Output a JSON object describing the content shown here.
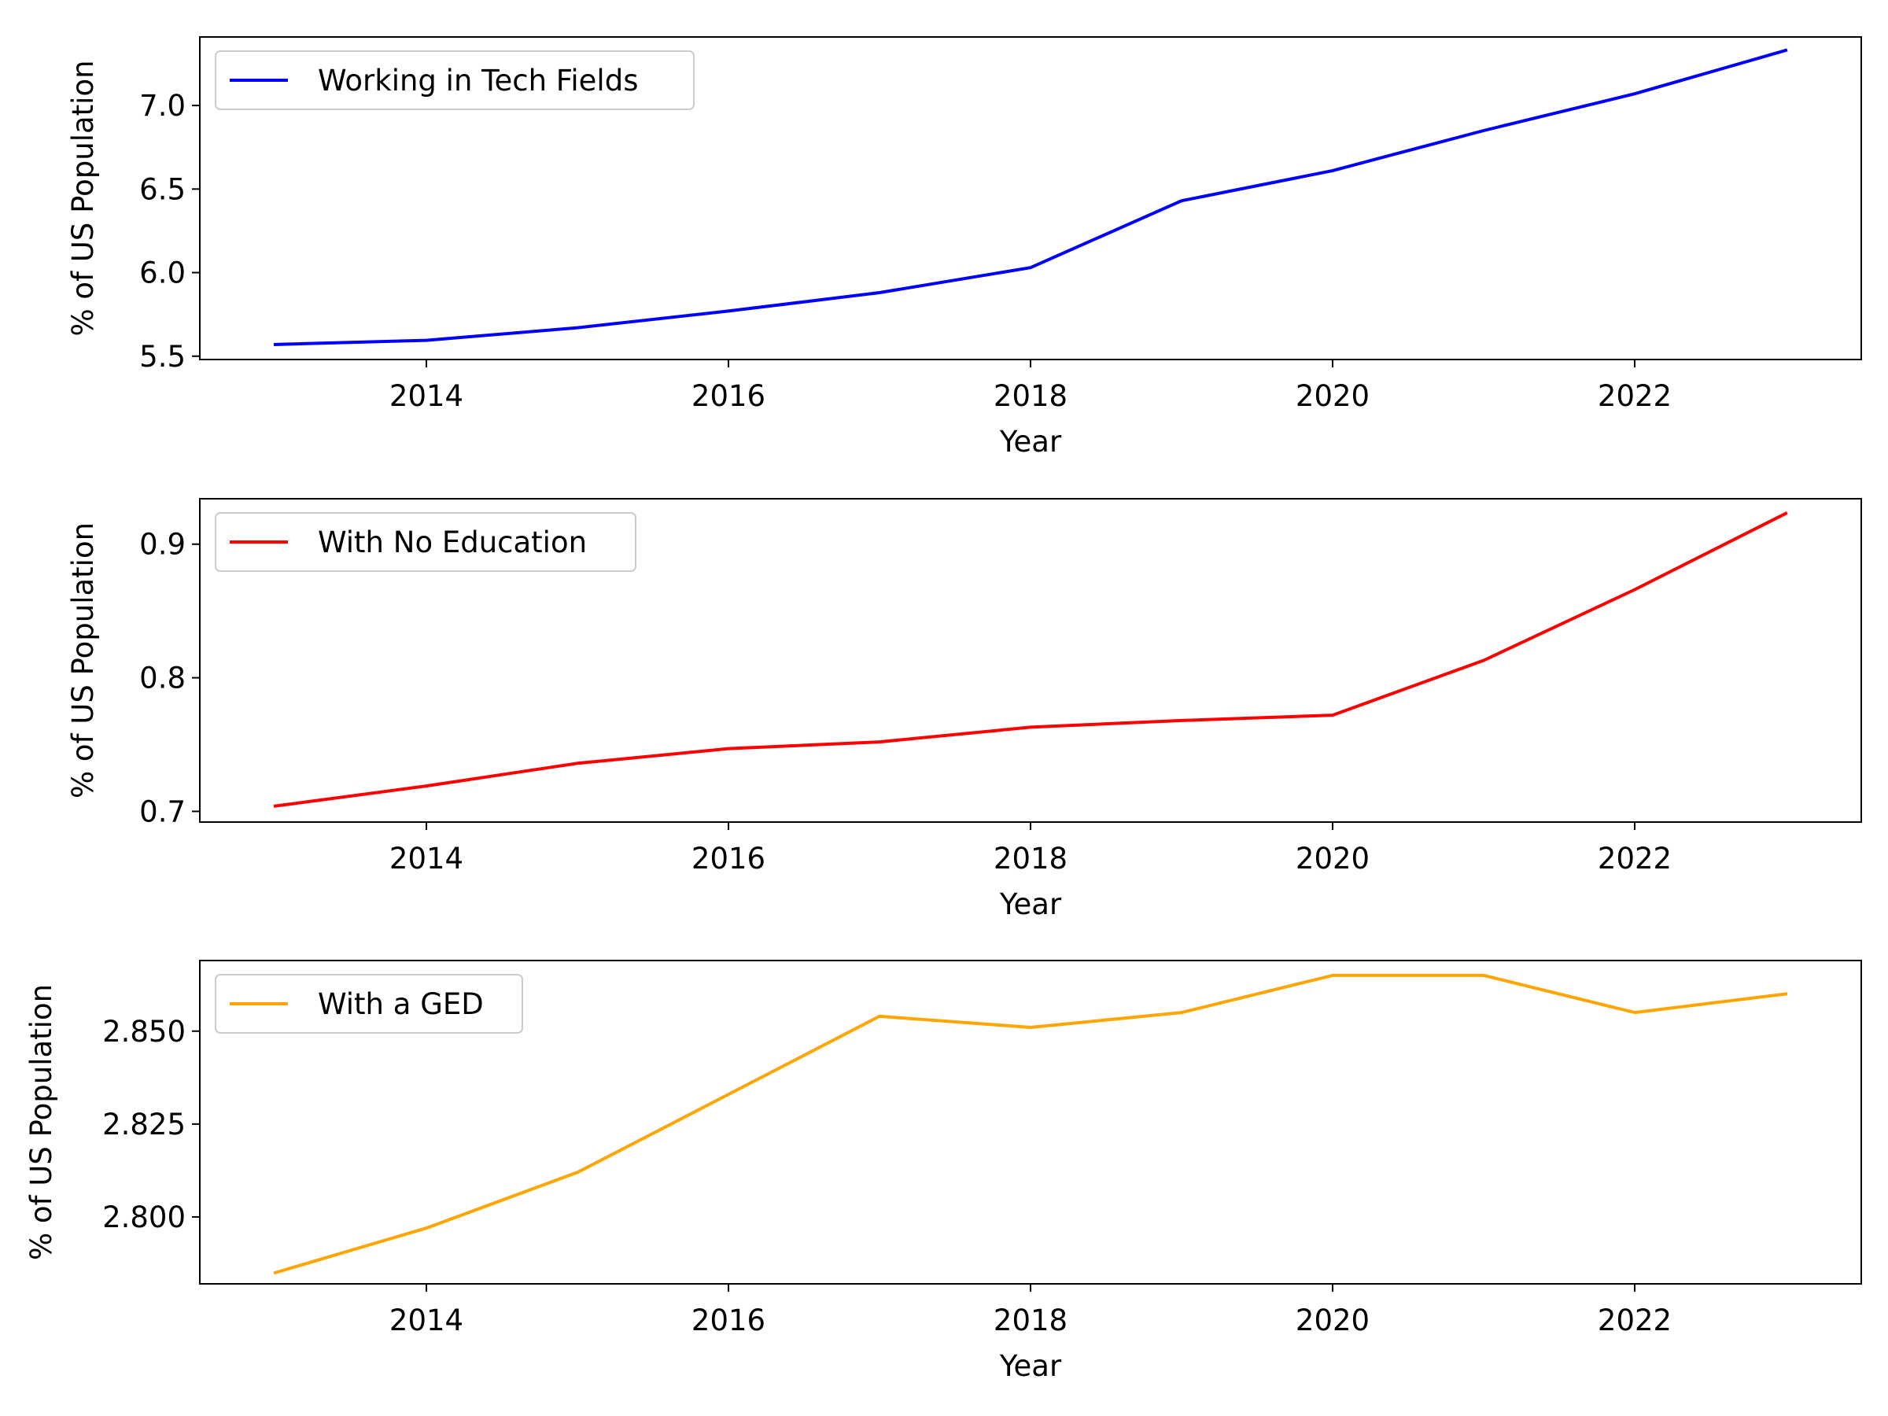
{
  "chart_data": [
    {
      "type": "line",
      "xlabel": "Year",
      "ylabel": "% of US Population",
      "xlim": [
        2012.5,
        2023.5
      ],
      "ylim": [
        5.48,
        7.41
      ],
      "x_ticks": [
        2014,
        2016,
        2018,
        2020,
        2022
      ],
      "y_ticks": [
        5.5,
        6.0,
        6.5,
        7.0
      ],
      "y_tick_labels": [
        "5.5",
        "6.0",
        "6.5",
        "7.0"
      ],
      "legend_position": "upper-left",
      "grid": false,
      "series": [
        {
          "name": "Working in Tech Fields",
          "color": "#0000ff",
          "x": [
            2013,
            2014,
            2015,
            2016,
            2017,
            2018,
            2019,
            2020,
            2021,
            2022,
            2023
          ],
          "y": [
            5.57,
            5.595,
            5.67,
            5.77,
            5.88,
            6.03,
            6.43,
            6.61,
            6.85,
            7.07,
            7.33
          ]
        }
      ]
    },
    {
      "type": "line",
      "xlabel": "Year",
      "ylabel": "% of US Population",
      "xlim": [
        2012.5,
        2023.5
      ],
      "ylim": [
        0.692,
        0.934
      ],
      "x_ticks": [
        2014,
        2016,
        2018,
        2020,
        2022
      ],
      "y_ticks": [
        0.7,
        0.8,
        0.9
      ],
      "y_tick_labels": [
        "0.7",
        "0.8",
        "0.9"
      ],
      "legend_position": "upper-left",
      "grid": false,
      "series": [
        {
          "name": "With No Education",
          "color": "#ff0000",
          "x": [
            2013,
            2014,
            2015,
            2016,
            2017,
            2018,
            2019,
            2020,
            2021,
            2022,
            2023
          ],
          "y": [
            0.704,
            0.719,
            0.736,
            0.747,
            0.752,
            0.763,
            0.768,
            0.772,
            0.813,
            0.866,
            0.923
          ]
        }
      ]
    },
    {
      "type": "line",
      "xlabel": "Year",
      "ylabel": "% of US Population",
      "xlim": [
        2012.5,
        2023.5
      ],
      "ylim": [
        2.782,
        2.869
      ],
      "x_ticks": [
        2014,
        2016,
        2018,
        2020,
        2022
      ],
      "y_ticks": [
        2.8,
        2.825,
        2.85
      ],
      "y_tick_labels": [
        "2.800",
        "2.825",
        "2.850"
      ],
      "legend_position": "upper-left",
      "grid": false,
      "series": [
        {
          "name": "With a GED",
          "color": "#ffa500",
          "x": [
            2013,
            2014,
            2015,
            2016,
            2017,
            2018,
            2019,
            2020,
            2021,
            2022,
            2023
          ],
          "y": [
            2.785,
            2.797,
            2.812,
            2.833,
            2.854,
            2.851,
            2.855,
            2.865,
            2.865,
            2.855,
            2.86
          ]
        }
      ]
    }
  ]
}
